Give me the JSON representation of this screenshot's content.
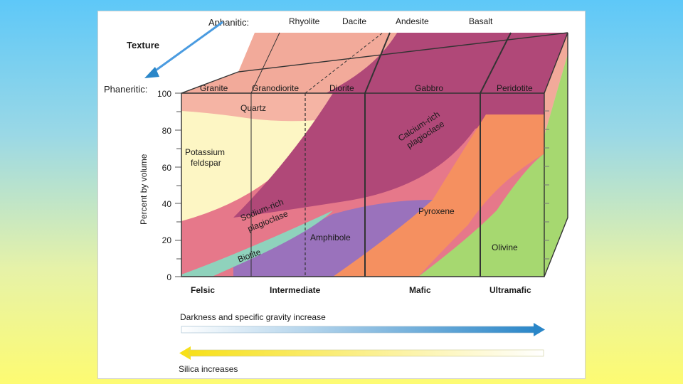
{
  "texture": {
    "aphanitic_label": "Aphanitic:",
    "texture_label": "Texture",
    "phaneritic_label": "Phaneritic:"
  },
  "volcanic_rocks": [
    "Rhyolite",
    "Dacite",
    "Andesite",
    "Basalt"
  ],
  "plutonic_rocks": [
    "Granite",
    "Granodiorite",
    "Diorite",
    "Gabbro",
    "Peridotite"
  ],
  "axis": {
    "ylabel": "Percent by volume",
    "ticks": [
      "100",
      "80",
      "60",
      "40",
      "20",
      "0"
    ]
  },
  "minerals": {
    "quartz": "Quartz",
    "potassium_feldspar": [
      "Potassium",
      "feldspar"
    ],
    "calcium_plagioclase": [
      "Calcium-rich",
      "plagioclase"
    ],
    "sodium_plagioclase": [
      "Sodium-rich",
      "plagioclase"
    ],
    "biotite": "Biotite",
    "amphibole": "Amphibole",
    "pyroxene": "Pyroxene",
    "olivine": "Olivine"
  },
  "compositions": [
    "Felsic",
    "Intermediate",
    "Mafic",
    "Ultramafic"
  ],
  "arrows": {
    "darkness": "Darkness and specific gravity increase",
    "silica": "Silica increases"
  },
  "colors": {
    "quartz": "#f5b4a4",
    "potassium_feldspar": "#fdf6c4",
    "calcium_plagioclase": "#b04878",
    "sodium_plagioclase": "#e6788a",
    "biotite": "#8fd2bc",
    "amphibole": "#9a72bc",
    "pyroxene": "#f59060",
    "olivine": "#a6d870",
    "top_face": "#f2aa9a",
    "side_face": "#d8d8d8",
    "blue_arrow": "#2a86c8",
    "yellow_arrow": "#f7e01a"
  }
}
